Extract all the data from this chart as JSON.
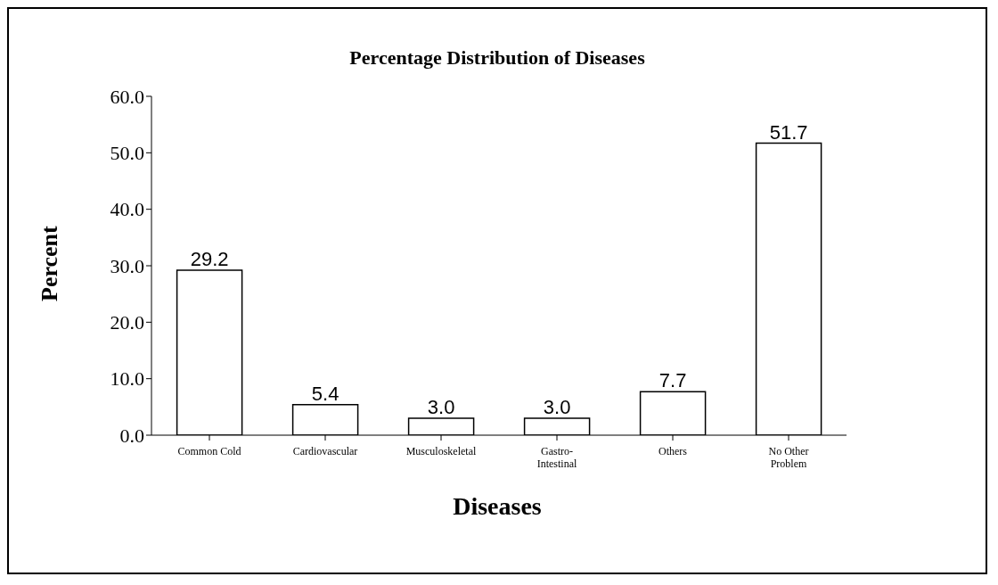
{
  "chart_data": {
    "type": "bar",
    "title": "Percentage Distribution of Diseases",
    "xlabel": "Diseases",
    "ylabel": "Percent",
    "categories": [
      "Common Cold",
      "Cardiovascular",
      "Musculoskeletal",
      "Gastro-Intestinal",
      "Others",
      "No Other Problem"
    ],
    "values": [
      29.2,
      5.4,
      3.0,
      3.0,
      7.7,
      51.7
    ],
    "value_labels": [
      "29.2",
      "5.4",
      "3.0",
      "3.0",
      "7.7",
      "51.7"
    ],
    "color": "#ffffff",
    "ylim": [
      0,
      60
    ],
    "yticks": [
      {
        "value": 0,
        "label": "0.0"
      },
      {
        "value": 10,
        "label": "10.0"
      },
      {
        "value": 20,
        "label": "20.0"
      },
      {
        "value": 30,
        "label": "30.0"
      },
      {
        "value": 40,
        "label": "40.0"
      },
      {
        "value": 50,
        "label": "50.0"
      },
      {
        "value": 60,
        "label": "60.0"
      }
    ],
    "grid": false,
    "legend": false
  }
}
